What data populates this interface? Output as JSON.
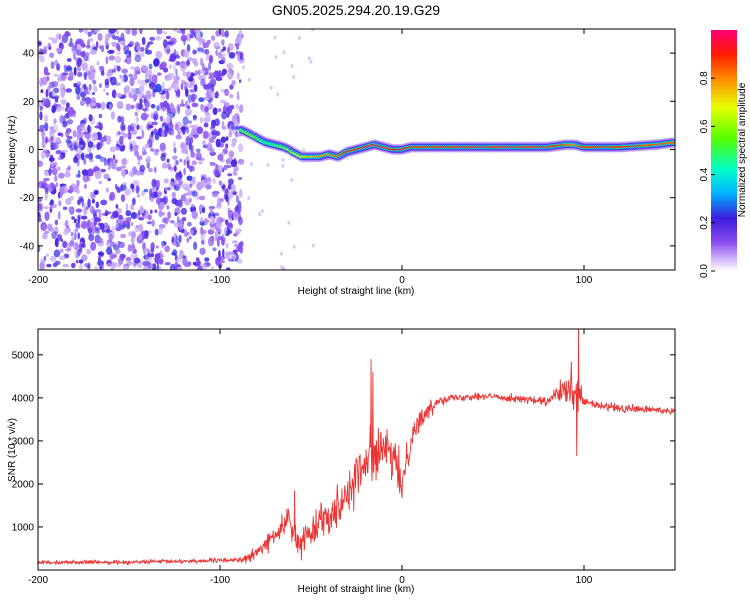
{
  "title": "GN05.2025.294.20.19.G29",
  "chart_data": [
    {
      "type": "heatmap",
      "name": "spectrogram",
      "xlabel": "Height of straight line (km)",
      "ylabel": "Frequency (Hz)",
      "xlim": [
        -200,
        150
      ],
      "ylim": [
        -50,
        50
      ],
      "xticks": [
        -200,
        -100,
        0,
        100
      ],
      "yticks": [
        -40,
        -20,
        0,
        20,
        40
      ],
      "noise_region_x": [
        -200,
        -88
      ],
      "signal_ridge": {
        "x": [
          -88,
          -85,
          -80,
          -75,
          -70,
          -65,
          -62,
          -60,
          -55,
          -50,
          -45,
          -40,
          -35,
          -30,
          -25,
          -20,
          -15,
          -10,
          -5,
          0,
          5,
          10,
          20,
          30,
          40,
          60,
          80,
          90,
          95,
          100,
          120,
          140,
          150
        ],
        "freq": [
          8,
          7,
          5,
          3,
          2,
          1,
          0,
          -1,
          -3,
          -3,
          -3,
          -2,
          -3,
          -1,
          0,
          1,
          2,
          1,
          0,
          0,
          1,
          1,
          1,
          1,
          1,
          1,
          1,
          2,
          2,
          1,
          1,
          2,
          3
        ],
        "amplitude": [
          0.5,
          0.6,
          0.55,
          0.4,
          0.45,
          0.55,
          0.65,
          0.6,
          0.7,
          0.75,
          0.8,
          0.8,
          0.85,
          0.9,
          0.9,
          0.95,
          0.95,
          0.95,
          0.9,
          0.95,
          0.9,
          0.9,
          0.92,
          0.92,
          0.95,
          0.95,
          0.95,
          0.85,
          0.8,
          0.9,
          0.9,
          0.85,
          0.85
        ]
      },
      "colorbar": {
        "label": "Normalized spectral amplitude",
        "range": [
          0,
          1
        ],
        "ticks": [
          "0.0",
          "0.2",
          "0.4",
          "0.6",
          "0.8"
        ]
      }
    },
    {
      "type": "line",
      "name": "snr",
      "xlabel": "Height of straight line (km)",
      "ylabel": "SNR (10 * v/v)",
      "xlim": [
        -200,
        150
      ],
      "ylim": [
        0,
        5600
      ],
      "xticks": [
        -200,
        -100,
        0,
        100
      ],
      "yticks": [
        1000,
        2000,
        3000,
        4000,
        5000
      ],
      "color": "#ee3333",
      "trend": {
        "x": [
          -200,
          -150,
          -100,
          -85,
          -80,
          -75,
          -70,
          -65,
          -62,
          -60,
          -57,
          -55,
          -50,
          -45,
          -40,
          -35,
          -30,
          -25,
          -20,
          -17,
          -15,
          -10,
          -5,
          0,
          5,
          10,
          15,
          20,
          25,
          30,
          40,
          60,
          80,
          85,
          90,
          95,
          97,
          100,
          110,
          120,
          140,
          150
        ],
        "y": [
          180,
          180,
          220,
          250,
          400,
          600,
          800,
          1000,
          1300,
          900,
          500,
          700,
          900,
          1200,
          1300,
          1500,
          1800,
          2200,
          2400,
          2800,
          2600,
          2800,
          2600,
          2000,
          3100,
          3500,
          3700,
          3950,
          4000,
          4000,
          4050,
          4000,
          3900,
          4100,
          4150,
          4050,
          4050,
          3900,
          3800,
          3750,
          3720,
          3700
        ]
      },
      "noise_amplitude": {
        "x": [
          -200,
          -90,
          -85,
          -70,
          -60,
          -50,
          -40,
          -30,
          -20,
          -10,
          0,
          10,
          20,
          30,
          80,
          90,
          95,
          100,
          150
        ],
        "y": [
          50,
          60,
          150,
          250,
          350,
          400,
          500,
          600,
          700,
          650,
          550,
          300,
          150,
          100,
          120,
          350,
          600,
          150,
          90
        ]
      },
      "spikes": [
        {
          "x": -59,
          "y": 1850
        },
        {
          "x": -17,
          "y": 4900
        },
        {
          "x": -16,
          "y": 4600
        },
        {
          "x": 97,
          "y": 5600
        },
        {
          "x": 96,
          "y": 2650
        },
        {
          "x": 93,
          "y": 4850
        }
      ]
    }
  ]
}
